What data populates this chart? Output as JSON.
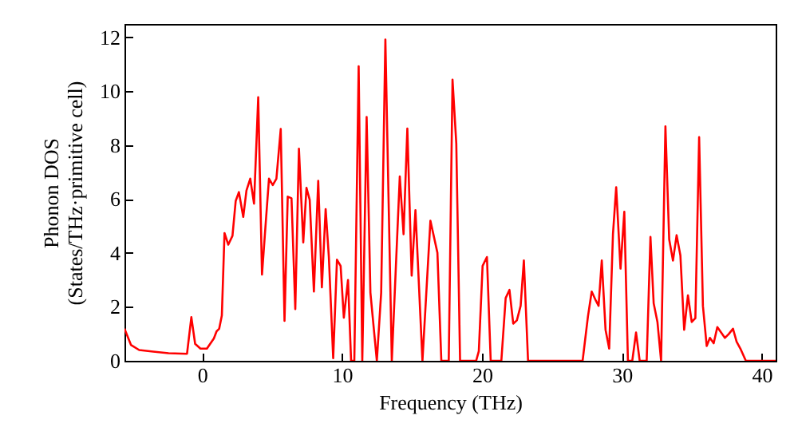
{
  "chart_data": {
    "type": "line",
    "xlabel": "Frequency (THz)",
    "ylabel": "Phonon DOS\n(States/THz·primitive cell)",
    "xlim": [
      -5.55,
      41
    ],
    "ylim": [
      0,
      12.5
    ],
    "xticks": [
      0,
      10,
      20,
      30,
      40
    ],
    "yticks": [
      0,
      2,
      4,
      6,
      8,
      10,
      12
    ],
    "grid": false,
    "marker": "none",
    "line_style": "solid",
    "series": [
      {
        "color": "#ff0000",
        "x": [
          -5.55,
          -5.09,
          -4.5,
          -3.5,
          -2.4,
          -1.08,
          -0.77,
          -0.5,
          -0.12,
          0.34,
          0.84,
          1.03,
          1.22,
          1.41,
          1.6,
          1.87,
          2.17,
          2.4,
          2.63,
          2.94,
          3.17,
          3.44,
          3.71,
          4.01,
          4.28,
          4.55,
          4.78,
          5.05,
          5.31,
          5.62,
          5.89,
          6.12,
          6.39,
          6.66,
          6.92,
          7.23,
          7.46,
          7.69,
          7.99,
          8.3,
          8.56,
          8.83,
          9.06,
          9.37,
          9.64,
          9.9,
          10.13,
          10.43,
          10.65,
          10.88,
          11.19,
          11.45,
          11.76,
          12.03,
          12.49,
          12.8,
          13.1,
          13.56,
          14.13,
          14.4,
          14.67,
          14.98,
          15.25,
          15.75,
          16.32,
          16.82,
          17.1,
          17.63,
          17.9,
          18.17,
          18.44,
          19.59,
          19.78,
          20.05,
          20.36,
          20.63,
          21.39,
          21.7,
          21.97,
          22.24,
          22.5,
          22.77,
          23.0,
          23.3,
          27.2,
          27.58,
          27.85,
          28.15,
          28.34,
          28.57,
          28.84,
          29.1,
          29.37,
          29.6,
          29.91,
          30.18,
          30.44,
          30.75,
          31.02,
          31.28,
          31.78,
          32.05,
          32.28,
          32.55,
          32.81,
          33.12,
          33.39,
          33.66,
          33.92,
          34.19,
          34.46,
          34.73,
          35.0,
          35.26,
          35.53,
          35.8,
          36.07,
          36.3,
          36.57,
          36.83,
          37.1,
          37.37,
          37.64,
          37.95,
          38.21,
          38.48,
          38.87,
          41.0
        ],
        "values": [
          1.19,
          0.59,
          0.4,
          0.34,
          0.28,
          0.26,
          1.62,
          0.63,
          0.45,
          0.45,
          0.83,
          1.09,
          1.19,
          1.68,
          4.74,
          4.31,
          4.64,
          5.93,
          6.26,
          5.34,
          6.32,
          6.76,
          5.83,
          9.78,
          3.2,
          5.14,
          6.76,
          6.52,
          6.76,
          8.6,
          1.48,
          6.09,
          6.03,
          1.92,
          7.87,
          4.39,
          6.42,
          5.97,
          2.57,
          6.68,
          2.73,
          5.63,
          3.85,
          0.1,
          3.75,
          3.52,
          1.6,
          3.0,
          0,
          0,
          10.93,
          0,
          9.05,
          2.53,
          0,
          2.53,
          11.92,
          0,
          6.84,
          4.7,
          8.62,
          3.16,
          5.59,
          0,
          5.2,
          4.01,
          0,
          0,
          10.43,
          8.06,
          0,
          0,
          0.36,
          3.52,
          3.85,
          0,
          0,
          2.33,
          2.63,
          1.38,
          1.5,
          2.04,
          3.72,
          0,
          0,
          1.64,
          2.57,
          2.23,
          2.04,
          3.72,
          1.15,
          0.45,
          4.7,
          6.44,
          3.42,
          5.53,
          0,
          0,
          1.05,
          0,
          0,
          4.6,
          2.13,
          1.44,
          0,
          8.7,
          4.5,
          3.72,
          4.66,
          3.91,
          1.15,
          2.43,
          1.44,
          1.58,
          8.3,
          2.04,
          0.55,
          0.85,
          0.65,
          1.25,
          1.05,
          0.85,
          0.99,
          1.19,
          0.71,
          0.45,
          0,
          0
        ]
      }
    ]
  }
}
